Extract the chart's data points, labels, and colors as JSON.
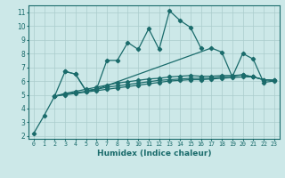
{
  "xlabel": "Humidex (Indice chaleur)",
  "xlim": [
    -0.5,
    23.5
  ],
  "ylim": [
    1.8,
    11.5
  ],
  "xticks": [
    0,
    1,
    2,
    3,
    4,
    5,
    6,
    7,
    8,
    9,
    10,
    11,
    12,
    13,
    14,
    15,
    16,
    17,
    18,
    19,
    20,
    21,
    22,
    23
  ],
  "yticks": [
    2,
    3,
    4,
    5,
    6,
    7,
    8,
    9,
    10,
    11
  ],
  "bg_color": "#cce8e8",
  "grid_color": "#aacccc",
  "line_color": "#1a6b6b",
  "line_width": 0.9,
  "marker": "D",
  "marker_size": 2.2,
  "curves": [
    {
      "x": [
        0,
        1,
        2,
        3,
        4,
        5,
        6,
        7,
        8,
        9,
        10,
        11,
        12,
        13,
        14,
        15,
        16
      ],
      "y": [
        2.2,
        3.5,
        4.9,
        6.7,
        6.5,
        5.3,
        5.4,
        7.5,
        7.5,
        8.8,
        8.3,
        9.8,
        8.3,
        11.1,
        10.4,
        9.9,
        8.4
      ]
    },
    {
      "x": [
        3,
        4,
        5,
        6,
        17,
        18,
        19,
        20,
        21,
        22,
        23
      ],
      "y": [
        6.7,
        6.5,
        5.3,
        5.4,
        8.4,
        8.1,
        6.3,
        8.0,
        7.6,
        5.9,
        6.0
      ]
    },
    {
      "x": [
        2,
        3,
        4,
        5,
        6,
        7,
        8,
        9,
        10,
        11,
        12,
        13,
        14,
        15,
        16,
        17,
        18,
        19,
        20,
        21,
        22,
        23
      ],
      "y": [
        4.9,
        5.1,
        5.25,
        5.4,
        5.55,
        5.7,
        5.85,
        5.95,
        6.05,
        6.15,
        6.2,
        6.3,
        6.35,
        6.4,
        6.35,
        6.35,
        6.4,
        6.4,
        6.45,
        6.3,
        6.1,
        6.05
      ]
    },
    {
      "x": [
        2,
        3,
        4,
        5,
        6,
        7,
        8,
        9,
        10,
        11,
        12,
        13,
        14,
        15,
        16,
        17,
        18,
        19,
        20,
        21,
        22,
        23
      ],
      "y": [
        4.9,
        5.05,
        5.15,
        5.25,
        5.4,
        5.55,
        5.65,
        5.75,
        5.85,
        5.95,
        6.05,
        6.1,
        6.15,
        6.2,
        6.2,
        6.2,
        6.3,
        6.35,
        6.45,
        6.3,
        6.1,
        6.05
      ]
    },
    {
      "x": [
        2,
        3,
        4,
        5,
        6,
        7,
        8,
        9,
        10,
        11,
        12,
        13,
        14,
        15,
        16,
        17,
        18,
        19,
        20,
        21,
        22,
        23
      ],
      "y": [
        4.9,
        5.0,
        5.1,
        5.2,
        5.3,
        5.4,
        5.5,
        5.6,
        5.7,
        5.8,
        5.9,
        6.0,
        6.05,
        6.1,
        6.1,
        6.15,
        6.2,
        6.25,
        6.3,
        6.3,
        6.1,
        6.05
      ]
    }
  ]
}
